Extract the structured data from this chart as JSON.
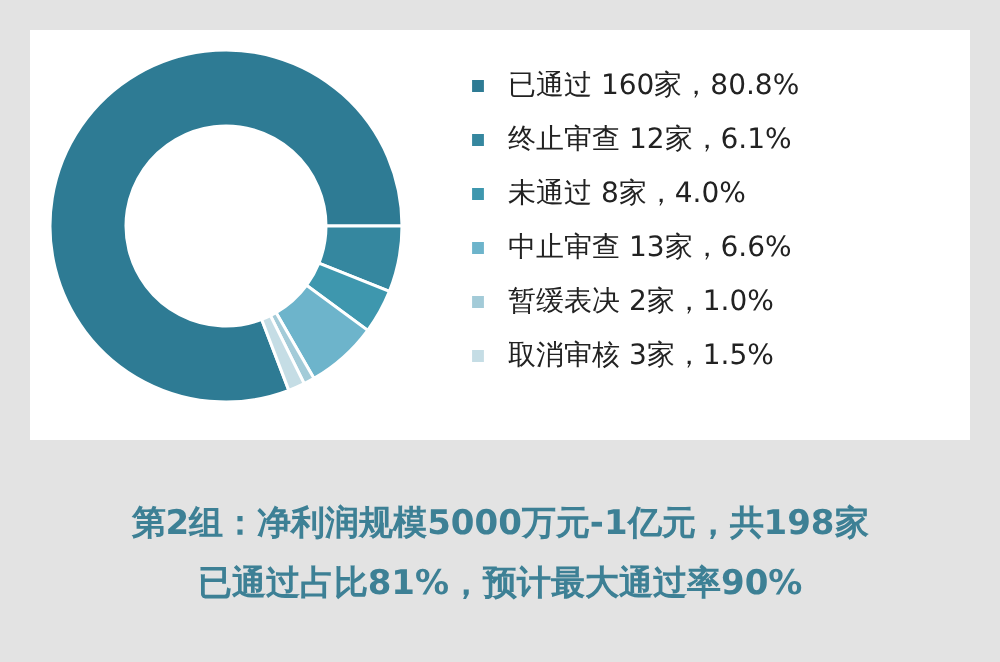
{
  "chart_data": {
    "type": "donut",
    "title": "第2组：净利润规模5000万元-1亿元，共198家",
    "subtitle": "已通过占比81%，预计最大通过率90%",
    "categories": [
      "已通过",
      "终止审查",
      "未通过",
      "中止审查",
      "暂缓表决",
      "取消审核"
    ],
    "values": [
      160,
      12,
      8,
      13,
      2,
      3
    ],
    "value_labels": [
      "160家，80.8%",
      "12家，6.1%",
      "8家，4.0%",
      "13家，6.6%",
      "2家，1.0%",
      "3家，1.5%"
    ],
    "colors": [
      "#2e7b94",
      "#35879f",
      "#3e97ae",
      "#6db4cb",
      "#a3cbd8",
      "#c5dde5"
    ],
    "legend": "right"
  }
}
